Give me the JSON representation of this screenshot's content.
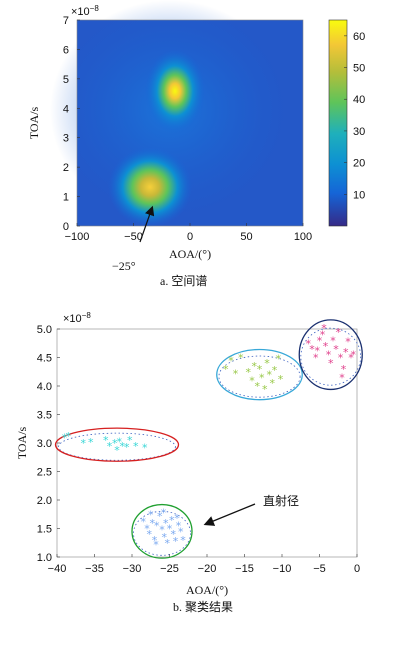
{
  "figure": {
    "top_caption": "a.  空间谱",
    "bottom_caption": "b.  聚类结果"
  },
  "chart_data": [
    {
      "type": "heatmap",
      "xlabel": "AOA/(°)",
      "ylabel": "TOA/s",
      "y_exponent": "×10",
      "y_exponent_power": "−8",
      "xlim": [
        -100,
        100
      ],
      "ylim": [
        0,
        7e-08
      ],
      "xticks": [
        "−100",
        "−50",
        "0",
        "50",
        "100"
      ],
      "yticks": [
        "0",
        "1",
        "2",
        "3",
        "4",
        "5",
        "6",
        "7"
      ],
      "colorbar": {
        "range": [
          0,
          65
        ],
        "ticks": [
          "10",
          "20",
          "30",
          "40",
          "50",
          "60"
        ]
      },
      "peaks": [
        {
          "aoa": -10,
          "toa": 4.65e-08,
          "power": 65
        },
        {
          "aoa": -25,
          "toa": 1.35e-08,
          "power": 60
        }
      ],
      "annotation": "−25°"
    },
    {
      "type": "scatter",
      "xlabel": "AOA/(°)",
      "ylabel": "TOA/s",
      "y_exponent": "×10",
      "y_exponent_power": "−8",
      "xlim": [
        -40,
        0
      ],
      "ylim": [
        1e-08,
        5e-08
      ],
      "xticks": [
        "−40",
        "−35",
        "−30",
        "−25",
        "−20",
        "−15",
        "−10",
        "−5",
        "0"
      ],
      "yticks": [
        "1.0",
        "1.5",
        "2.0",
        "2.5",
        "3.0",
        "3.5",
        "4.0",
        "4.5",
        "5.0"
      ],
      "annotation": "直射径",
      "series": [
        {
          "color": "#37d6d6",
          "ellipse_color": "#d62020",
          "center": [
            -32,
            2.97
          ],
          "points": [
            [
              -39,
              3.1
            ],
            [
              -38.5,
              3.12
            ],
            [
              -36.5,
              3.0
            ],
            [
              -35.5,
              3.02
            ],
            [
              -33.5,
              3.05
            ],
            [
              -33,
              2.95
            ],
            [
              -32.3,
              3.0
            ],
            [
              -32,
              2.88
            ],
            [
              -31.7,
              3.03
            ],
            [
              -31.3,
              2.95
            ],
            [
              -30.7,
              2.93
            ],
            [
              -30.3,
              3.05
            ],
            [
              -29.5,
              2.95
            ],
            [
              -28.3,
              2.92
            ]
          ]
        },
        {
          "color": "#7aa8ef",
          "ellipse_color": "#20a030",
          "center": [
            -26,
            1.45
          ],
          "points": [
            [
              -28.5,
              1.62
            ],
            [
              -28,
              1.5
            ],
            [
              -27.7,
              1.4
            ],
            [
              -27.3,
              1.6
            ],
            [
              -27,
              1.3
            ],
            [
              -26.7,
              1.55
            ],
            [
              -26.3,
              1.72
            ],
            [
              -26,
              1.48
            ],
            [
              -25.7,
              1.35
            ],
            [
              -25.5,
              1.6
            ],
            [
              -25.3,
              1.25
            ],
            [
              -25,
              1.5
            ],
            [
              -24.7,
              1.65
            ],
            [
              -24.5,
              1.4
            ],
            [
              -24.2,
              1.28
            ],
            [
              -23.8,
              1.55
            ],
            [
              -23.5,
              1.45
            ],
            [
              -23.2,
              1.3
            ],
            [
              -26.8,
              1.22
            ],
            [
              -25.8,
              1.78
            ],
            [
              -24,
              1.68
            ],
            [
              -27.5,
              1.75
            ]
          ]
        },
        {
          "color": "#98c848",
          "ellipse_color": "#38a8d8",
          "center": [
            -13,
            4.2
          ],
          "points": [
            [
              -17.5,
              4.3
            ],
            [
              -16.2,
              4.22
            ],
            [
              -15.5,
              4.5
            ],
            [
              -14.5,
              4.25
            ],
            [
              -14,
              4.1
            ],
            [
              -13.7,
              4.35
            ],
            [
              -13.3,
              4.0
            ],
            [
              -13,
              4.3
            ],
            [
              -12.7,
              4.15
            ],
            [
              -12.3,
              3.95
            ],
            [
              -12,
              4.4
            ],
            [
              -11.7,
              4.2
            ],
            [
              -11.3,
              4.05
            ],
            [
              -11,
              4.28
            ],
            [
              -10.5,
              4.48
            ],
            [
              -10.2,
              4.12
            ],
            [
              -16.8,
              4.45
            ]
          ]
        },
        {
          "color": "#e0408c",
          "ellipse_color": "#1a3070",
          "center": [
            -3.5,
            4.55
          ],
          "points": [
            [
              -6.5,
              4.75
            ],
            [
              -6,
              4.65
            ],
            [
              -5.5,
              4.5
            ],
            [
              -5,
              4.8
            ],
            [
              -4.6,
              4.9
            ],
            [
              -4.2,
              4.7
            ],
            [
              -3.8,
              4.55
            ],
            [
              -3.5,
              4.4
            ],
            [
              -3.2,
              4.8
            ],
            [
              -2.8,
              4.65
            ],
            [
              -2.5,
              4.95
            ],
            [
              -2.2,
              4.5
            ],
            [
              -1.8,
              4.3
            ],
            [
              -1.5,
              4.6
            ],
            [
              -1.2,
              4.78
            ],
            [
              -0.8,
              4.5
            ],
            [
              -0.5,
              4.55
            ],
            [
              -2.0,
              4.15
            ],
            [
              -4.4,
              5.02
            ],
            [
              -5.3,
              4.62
            ]
          ]
        }
      ]
    }
  ]
}
